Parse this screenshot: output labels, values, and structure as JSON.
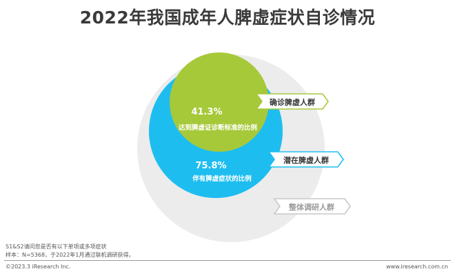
{
  "title": "2022年我国成年人脾虚症状自诊情况",
  "chart_data": {
    "type": "nested-bubble",
    "title": "2022年我国成年人脾虚症状自诊情况",
    "series": [
      {
        "name": "整体调研人群",
        "color": "#ececec",
        "label_color": "#9a9a9a"
      },
      {
        "name": "潜在脾虚人群",
        "value": 75.8,
        "value_label": "75.8%",
        "description": "伴有脾虚症状的比例",
        "color": "#1ebdf0"
      },
      {
        "name": "确诊脾虚人群",
        "value": 41.3,
        "value_label": "41.3%",
        "description": "达到脾虚证诊断标准的比例",
        "color": "#a6c93a"
      }
    ]
  },
  "footer": {
    "note_line1": "S1&S2请问您是否有以下单项或多项症状",
    "note_line2": "样本：N=5368，于2022年1月通过联机调研获得。",
    "copyright": "©2023.3 iResearch Inc.",
    "website": "www.iresearch.com.cn"
  }
}
